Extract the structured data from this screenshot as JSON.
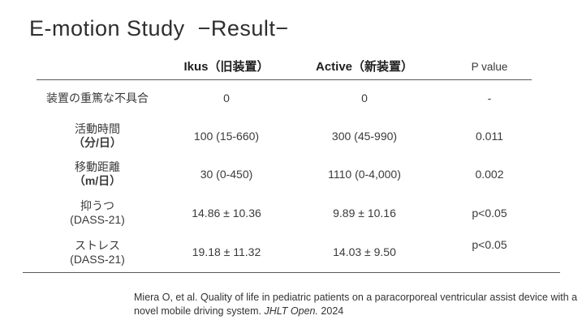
{
  "title": "E-motion Study  −Result−",
  "table": {
    "columns": {
      "ikus": "Ikus（旧装置）",
      "active": "Active（新装置）",
      "p": "P value"
    },
    "rows": [
      {
        "label1": "装置の重篤な不具合",
        "label2": "",
        "ikus": "0",
        "active": "0",
        "p": "-"
      },
      {
        "label1": "活動時間",
        "label2": "（分/日）",
        "ikus": "100 (15-660)",
        "active": "300 (45-990)",
        "p": "0.011"
      },
      {
        "label1": "移動距離",
        "label2": "（m/日）",
        "ikus": "30 (0-450)",
        "active": "1110 (0-4,000)",
        "p": "0.002"
      },
      {
        "label1": "抑うつ",
        "label2": "(DASS-21)",
        "ikus": "14.86 ± 10.36",
        "active": "9.89 ± 10.16",
        "p": "p<0.05"
      },
      {
        "label1": "ストレス",
        "label2": "(DASS-21)",
        "ikus": "19.18 ± 11.32",
        "active": "14.03 ± 9.50",
        "p": "p<0.05"
      }
    ]
  },
  "citation": {
    "text": "Miera O, et al. Quality of life in pediatric patients on a paracorporeal ventricular assist device with a novel mobile driving system. ",
    "journal_italic": "JHLT Open.",
    "year": " 2024"
  },
  "colors": {
    "text": "#3a3a3a",
    "rule": "#595959",
    "background": "#ffffff"
  }
}
